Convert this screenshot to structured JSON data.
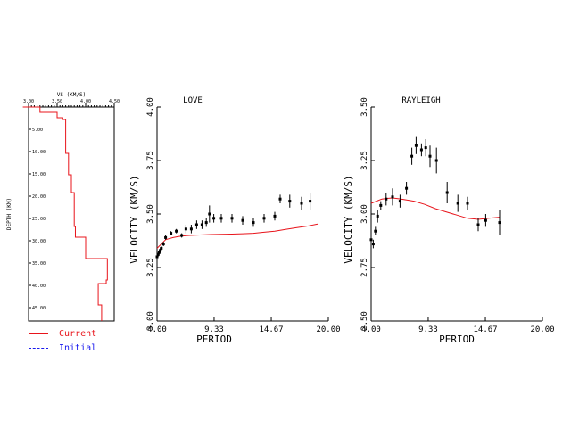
{
  "colors": {
    "axis": "#000000",
    "current": "#e8141b",
    "initial": "#1a1aee",
    "background": "#ffffff"
  },
  "legend": {
    "current_label": "Current",
    "initial_label": "Initial"
  },
  "chart_data": [
    {
      "type": "line",
      "panel": "velocity-model",
      "title": "",
      "xlabel": "VS (KM/S)",
      "ylabel": "DEPTH (KM)",
      "xlim": [
        3.0,
        4.5
      ],
      "ylim": [
        0,
        48
      ],
      "x_ticks": [
        "3.00",
        "3.50",
        "4.00",
        "4.50"
      ],
      "y_ticks": [
        "5.00",
        "10.00",
        "15.00",
        "20.00",
        "25.00",
        "30.00",
        "35.00",
        "40.00",
        "45.00"
      ],
      "series": [
        {
          "name": "Current",
          "x": [
            2.9,
            3.2,
            3.2,
            3.5,
            3.5,
            3.6,
            3.6,
            3.65,
            3.65,
            3.7,
            3.7,
            3.75,
            3.75,
            3.8,
            3.8,
            3.82,
            3.82,
            3.85,
            3.85,
            4.0,
            4.0,
            4.38,
            4.38,
            4.36,
            4.36,
            4.22,
            4.22,
            4.28,
            4.28
          ],
          "y": [
            0,
            0,
            1.2,
            1.2,
            2.4,
            2.4,
            2.8,
            2.8,
            10.4,
            10.4,
            15.2,
            15.2,
            19.2,
            19.2,
            26.8,
            26.8,
            29.2,
            29.2,
            29.2,
            29.2,
            34.0,
            34.0,
            38.8,
            38.8,
            39.6,
            39.6,
            44.4,
            44.4,
            48.0
          ]
        }
      ]
    },
    {
      "type": "scatter",
      "panel": "love",
      "title": "LOVE",
      "xlabel": "PERIOD",
      "ylabel": "VELOCITY (KM/S)",
      "xlim": [
        4.0,
        20.0
      ],
      "ylim": [
        3.0,
        4.0
      ],
      "x_ticks": [
        "4.00",
        "9.33",
        "14.67",
        "20.00"
      ],
      "y_ticks": [
        "3.00",
        "3.25",
        "3.50",
        "3.75",
        "4.00"
      ],
      "observed": {
        "x": [
          4.0,
          4.1,
          4.2,
          4.3,
          4.4,
          4.6,
          4.8,
          5.3,
          5.8,
          6.3,
          6.7,
          7.2,
          7.7,
          8.2,
          8.6,
          8.9,
          9.3,
          10.0,
          11.0,
          12.0,
          13.0,
          14.0,
          15.0,
          15.5,
          16.4,
          17.5,
          18.3
        ],
        "y": [
          3.3,
          3.31,
          3.32,
          3.33,
          3.34,
          3.36,
          3.39,
          3.41,
          3.42,
          3.4,
          3.43,
          3.43,
          3.45,
          3.45,
          3.46,
          3.5,
          3.48,
          3.48,
          3.48,
          3.47,
          3.46,
          3.48,
          3.49,
          3.57,
          3.56,
          3.55,
          3.56
        ],
        "err": [
          0.01,
          0.01,
          0.01,
          0.01,
          0.01,
          0.01,
          0.01,
          0.01,
          0.01,
          0.01,
          0.02,
          0.02,
          0.02,
          0.02,
          0.02,
          0.04,
          0.02,
          0.02,
          0.02,
          0.02,
          0.02,
          0.02,
          0.02,
          0.02,
          0.03,
          0.03,
          0.04
        ]
      },
      "predicted": {
        "x": [
          4.0,
          4.2,
          4.4,
          4.6,
          4.8,
          5.0,
          5.5,
          6.0,
          6.5,
          7.0,
          8.0,
          9.0,
          10.0,
          11.0,
          12.0,
          13.0,
          14.0,
          15.0,
          16.0,
          17.0,
          18.0,
          19.0
        ],
        "y": [
          3.34,
          3.35,
          3.36,
          3.37,
          3.38,
          3.383,
          3.39,
          3.395,
          3.398,
          3.4,
          3.402,
          3.404,
          3.405,
          3.406,
          3.408,
          3.41,
          3.415,
          3.42,
          3.428,
          3.436,
          3.443,
          3.453
        ]
      }
    },
    {
      "type": "scatter",
      "panel": "rayleigh",
      "title": "RAYLEIGH",
      "xlabel": "PERIOD",
      "ylabel": "VELOCITY (KM/S)",
      "xlim": [
        4.0,
        20.0
      ],
      "ylim": [
        2.5,
        3.5
      ],
      "x_ticks": [
        "4.00",
        "9.33",
        "14.67",
        "20.00"
      ],
      "y_ticks": [
        "2.50",
        "2.75",
        "3.00",
        "3.25",
        "3.50"
      ],
      "observed": {
        "x": [
          4.0,
          4.2,
          4.4,
          4.6,
          4.9,
          5.4,
          6.0,
          6.7,
          7.3,
          7.8,
          8.2,
          8.7,
          9.1,
          9.5,
          10.1,
          11.1,
          12.1,
          13.0,
          14.0,
          14.7,
          16.0
        ],
        "y": [
          2.88,
          2.86,
          2.92,
          2.99,
          3.04,
          3.07,
          3.08,
          3.06,
          3.12,
          3.27,
          3.32,
          3.3,
          3.31,
          3.27,
          3.25,
          3.1,
          3.05,
          3.05,
          2.95,
          2.97,
          2.96
        ],
        "err": [
          0.04,
          0.02,
          0.02,
          0.03,
          0.02,
          0.03,
          0.04,
          0.03,
          0.03,
          0.04,
          0.04,
          0.03,
          0.04,
          0.05,
          0.06,
          0.05,
          0.04,
          0.03,
          0.03,
          0.03,
          0.06
        ]
      },
      "predicted": {
        "x": [
          4.0,
          4.5,
          5.0,
          5.5,
          6.0,
          6.5,
          7.0,
          8.0,
          9.0,
          10.0,
          11.0,
          12.0,
          13.0,
          14.0,
          15.0,
          16.0
        ],
        "y": [
          3.05,
          3.06,
          3.07,
          3.073,
          3.075,
          3.072,
          3.068,
          3.06,
          3.045,
          3.025,
          3.01,
          2.995,
          2.98,
          2.975,
          2.98,
          2.985
        ]
      }
    }
  ]
}
